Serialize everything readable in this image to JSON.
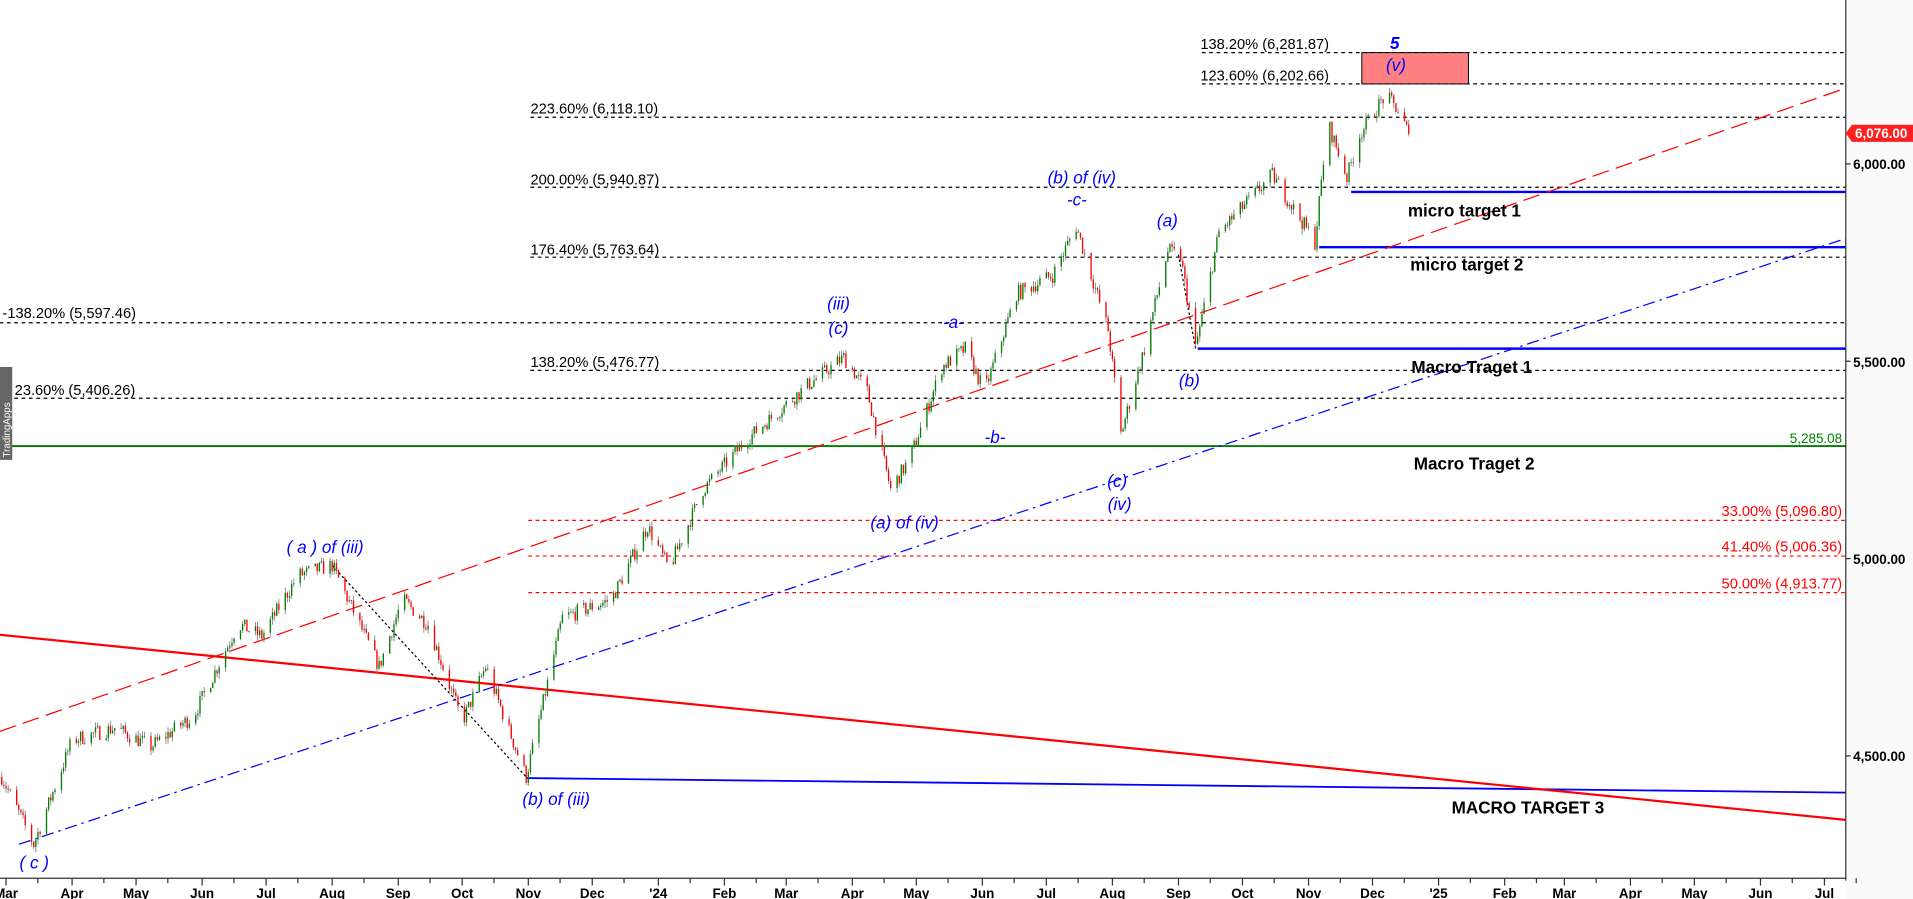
{
  "chart_data": {
    "type": "candlestick",
    "title": "",
    "watermark": "TradingApps",
    "last_price": 6076.0,
    "last_price_label": "6,076.00",
    "ylim": [
      4263,
      6375
    ],
    "xlim": [
      "2023-02-26",
      "2025-07-14"
    ],
    "y_ticks": [
      {
        "value": 6000,
        "label": "6,000.00"
      },
      {
        "value": 5500,
        "label": "5,500.00"
      },
      {
        "value": 5000,
        "label": "5,000.00"
      },
      {
        "value": 4500,
        "label": "4,500.00"
      }
    ],
    "x_ticks": [
      {
        "date": "2023-03-01",
        "label": "Mar"
      },
      {
        "date": "2023-04-01",
        "label": "Apr"
      },
      {
        "date": "2023-05-01",
        "label": "May"
      },
      {
        "date": "2023-06-01",
        "label": "Jun"
      },
      {
        "date": "2023-07-01",
        "label": "Jul"
      },
      {
        "date": "2023-08-01",
        "label": "Aug"
      },
      {
        "date": "2023-09-01",
        "label": "Sep"
      },
      {
        "date": "2023-10-01",
        "label": "Oct"
      },
      {
        "date": "2023-11-01",
        "label": "Nov"
      },
      {
        "date": "2023-12-01",
        "label": "Dec"
      },
      {
        "date": "2024-01-01",
        "label": "'24"
      },
      {
        "date": "2024-02-01",
        "label": "Feb"
      },
      {
        "date": "2024-03-01",
        "label": "Mar"
      },
      {
        "date": "2024-04-01",
        "label": "Apr"
      },
      {
        "date": "2024-05-01",
        "label": "May"
      },
      {
        "date": "2024-06-01",
        "label": "Jun"
      },
      {
        "date": "2024-07-01",
        "label": "Jul"
      },
      {
        "date": "2024-08-01",
        "label": "Aug"
      },
      {
        "date": "2024-09-01",
        "label": "Sep"
      },
      {
        "date": "2024-10-01",
        "label": "Oct"
      },
      {
        "date": "2024-11-01",
        "label": "Nov"
      },
      {
        "date": "2024-12-01",
        "label": "Dec"
      },
      {
        "date": "2025-01-01",
        "label": "'25"
      },
      {
        "date": "2025-02-01",
        "label": "Feb"
      },
      {
        "date": "2025-03-01",
        "label": "Mar"
      },
      {
        "date": "2025-04-01",
        "label": "Apr"
      },
      {
        "date": "2025-05-01",
        "label": "May"
      },
      {
        "date": "2025-06-01",
        "label": "Jun"
      },
      {
        "date": "2025-07-01",
        "label": "Jul"
      }
    ],
    "price_path": [
      [
        "2023-02-27",
        4447
      ],
      [
        "2023-03-14",
        4276
      ],
      [
        "2023-04-01",
        4540
      ],
      [
        "2023-04-21",
        4571
      ],
      [
        "2023-05-08",
        4524
      ],
      [
        "2023-05-28",
        4602
      ],
      [
        "2023-06-18",
        4834
      ],
      [
        "2023-06-29",
        4803
      ],
      [
        "2023-07-16",
        4958
      ],
      [
        "2023-08-01",
        4983
      ],
      [
        "2023-08-23",
        4726
      ],
      [
        "2023-09-03",
        4896
      ],
      [
        "2023-09-15",
        4834
      ],
      [
        "2023-10-01",
        4586
      ],
      [
        "2023-10-12",
        4726
      ],
      [
        "2023-10-31",
        4447
      ],
      [
        "2023-11-17",
        4850
      ],
      [
        "2023-12-10",
        4896
      ],
      [
        "2023-12-27",
        5082
      ],
      [
        "2024-01-06",
        4974
      ],
      [
        "2024-01-22",
        5175
      ],
      [
        "2024-02-11",
        5299
      ],
      [
        "2024-03-11",
        5439
      ],
      [
        "2024-03-28",
        5510
      ],
      [
        "2024-04-08",
        5423
      ],
      [
        "2024-04-19",
        5175
      ],
      [
        "2024-04-28",
        5253
      ],
      [
        "2024-05-13",
        5485
      ],
      [
        "2024-05-24",
        5532
      ],
      [
        "2024-06-02",
        5423
      ],
      [
        "2024-06-17",
        5671
      ],
      [
        "2024-07-04",
        5718
      ],
      [
        "2024-07-15",
        5842
      ],
      [
        "2024-07-30",
        5579
      ],
      [
        "2024-08-05",
        5315
      ],
      [
        "2024-08-16",
        5532
      ],
      [
        "2024-08-27",
        5780
      ],
      [
        "2024-09-02",
        5764
      ],
      [
        "2024-09-09",
        5532
      ],
      [
        "2024-09-20",
        5826
      ],
      [
        "2024-10-15",
        5972
      ],
      [
        "2024-11-04",
        5802
      ],
      [
        "2024-11-10",
        6105
      ],
      [
        "2024-11-19",
        5966
      ],
      [
        "2024-11-25",
        6074
      ],
      [
        "2024-12-07",
        6174
      ],
      [
        "2024-12-13",
        6136
      ],
      [
        "2024-12-18",
        6076
      ]
    ],
    "fib_levels": [
      {
        "label": "138.20% (6,281.87)",
        "price": 6281.87,
        "from": "2024-09-12",
        "color": "#000000"
      },
      {
        "label": "123.60% (6,202.66)",
        "price": 6202.66,
        "from": "2024-09-12",
        "color": "#000000"
      },
      {
        "label": "223.60% (6,118.10)",
        "price": 6118.1,
        "from": "2023-11-02",
        "color": "#000000"
      },
      {
        "label": "200.00% (5,940.87)",
        "price": 5940.87,
        "from": "2023-11-02",
        "color": "#000000"
      },
      {
        "label": "176.40% (5,763.64)",
        "price": 5763.64,
        "from": "2023-11-02",
        "color": "#000000"
      },
      {
        "label": "-138.20% (5,597.46)",
        "price": 5597.46,
        "from": "2023-02-26",
        "color": "#000000"
      },
      {
        "label": "138.20% (5,476.77)",
        "price": 5476.77,
        "from": "2023-11-02",
        "color": "#000000"
      },
      {
        "label": "23.60% (5,406.26)",
        "price": 5406.26,
        "from": "2023-02-26",
        "color": "#000000"
      },
      {
        "label": "33.00% (5,096.80)",
        "price": 5096.8,
        "from": "2023-11-01",
        "color": "#ff0000"
      },
      {
        "label": "41.40% (5,006.36)",
        "price": 5006.36,
        "from": "2023-11-01",
        "color": "#ff0000"
      },
      {
        "label": "50.00% (4,913.77)",
        "price": 4913.77,
        "from": "2023-11-01",
        "color": "#ff0000"
      }
    ],
    "support_line": {
      "label": "5,285.08",
      "price": 5285.08,
      "color": "#008000"
    },
    "targets": [
      {
        "label": "micro target 1",
        "price": 5929,
        "from": "2024-11-21"
      },
      {
        "label": "micro target 2",
        "price": 5789,
        "from": "2024-11-06"
      },
      {
        "label": "Macro Traget 1",
        "price": 5532,
        "from": "2024-09-10"
      },
      {
        "label": "Macro Traget 2",
        "price": 5285.08
      },
      {
        "label": "MACRO TARGET 3",
        "price_from": 4444,
        "price_to": 4407,
        "from": "2023-10-31",
        "to": "2025-07-14"
      }
    ],
    "trendlines": [
      {
        "style": "solid",
        "color": "#ff0000",
        "from": [
          "2023-02-26",
          4807
        ],
        "to": [
          "2025-07-14",
          4338
        ]
      },
      {
        "style": "dashed",
        "color": "#ff0000",
        "from": [
          "2023-02-26",
          4562
        ],
        "to": [
          "2025-07-14",
          6192
        ]
      },
      {
        "style": "dashdot",
        "color": "#0000ff",
        "from": [
          "2023-03-07",
          4276
        ],
        "to": [
          "2025-07-14",
          5811
        ]
      },
      {
        "style": "dotted",
        "color": "#000000",
        "from": [
          "2023-08-01",
          4983
        ],
        "to": [
          "2023-10-31",
          4447
        ]
      },
      {
        "style": "dotted",
        "color": "#000000",
        "from": [
          "2024-09-01",
          5770
        ],
        "to": [
          "2024-09-09",
          5532
        ]
      }
    ],
    "target_box": {
      "from": "2024-11-26",
      "to": "2025-01-15",
      "price_low": 6202.66,
      "price_high": 6281.87,
      "color": "#ff8080"
    },
    "wave_labels": [
      "5",
      "(v)",
      "(b) of (iv)",
      "-c-",
      "(a)",
      "(iii)",
      "(c)",
      "-a-",
      "-b-",
      "(b)",
      "(c)",
      "(iv)",
      "(a) of (iv)",
      "( a ) of (iii)",
      "(b) of (iii)",
      "( c )"
    ],
    "colors": {
      "up": "#008000",
      "down": "#ff0000",
      "wick": "#808080",
      "wave_text": "#0000ff"
    }
  }
}
